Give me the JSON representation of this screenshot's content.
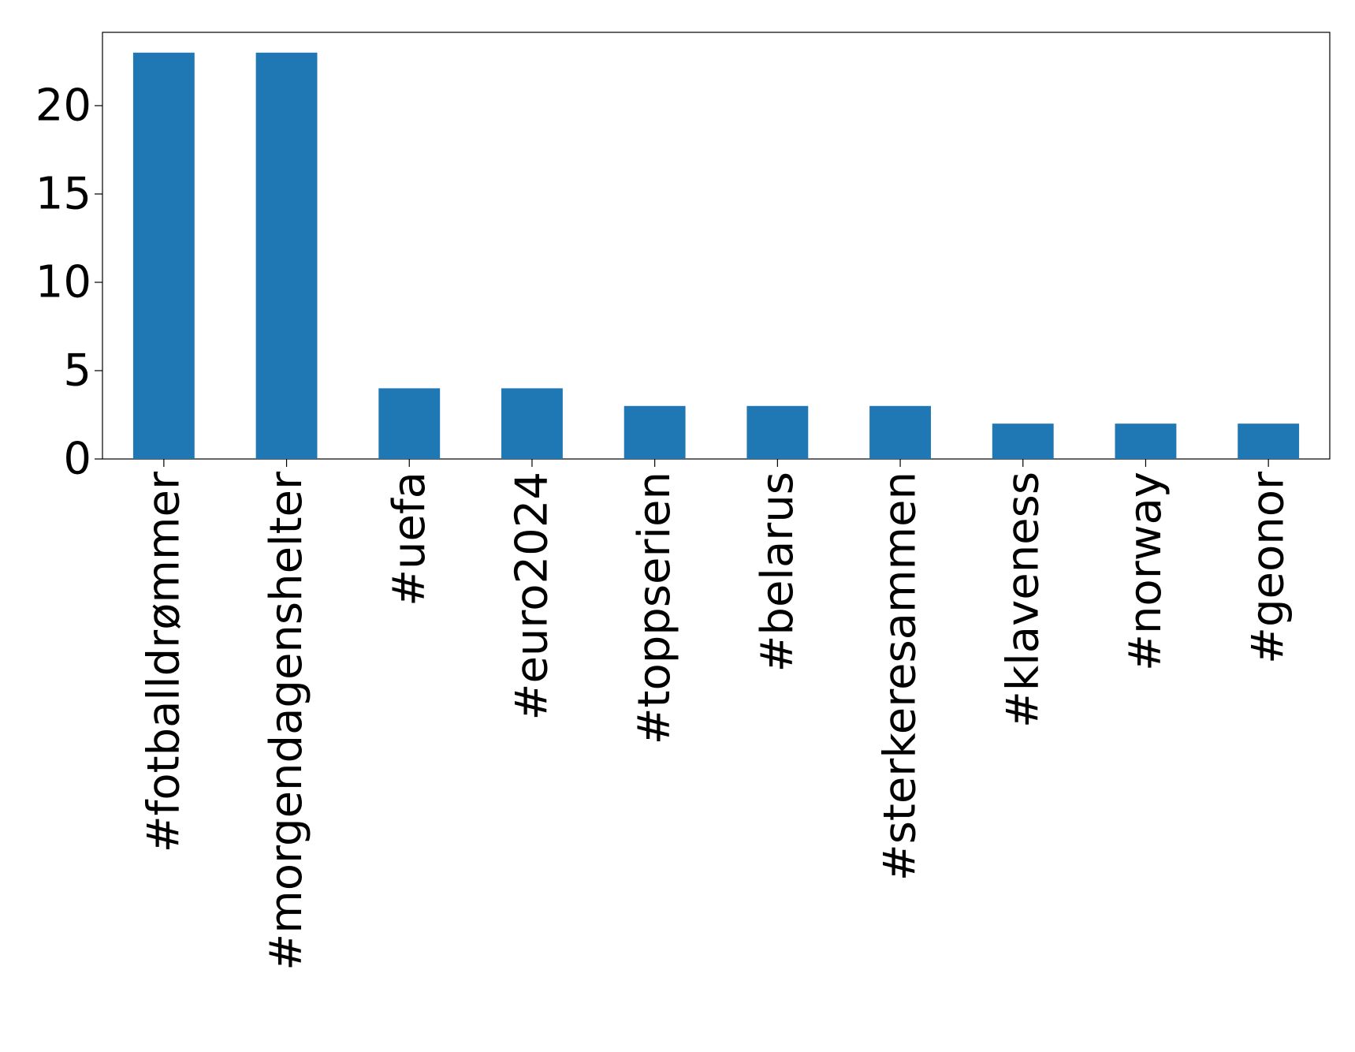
{
  "chart_data": {
    "type": "bar",
    "categories": [
      "#fotballdrømmer",
      "#morgendagenshelter",
      "#uefa",
      "#euro2024",
      "#toppserien",
      "#belarus",
      "#sterkeresammen",
      "#klaveness",
      "#norway",
      "#geonor"
    ],
    "values": [
      23,
      23,
      4,
      4,
      3,
      3,
      3,
      2,
      2,
      2
    ],
    "color": "#1f77b4",
    "ylim": [
      0,
      24.15
    ],
    "yticks": [
      0,
      5,
      10,
      15,
      20
    ],
    "grid": false
  }
}
